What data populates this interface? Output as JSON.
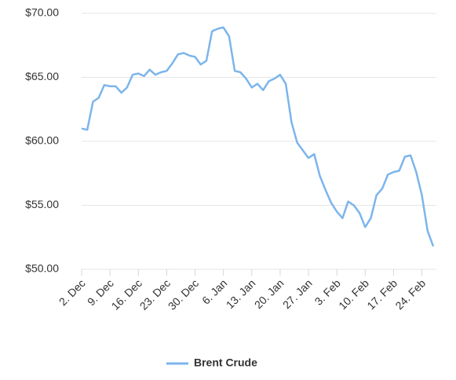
{
  "chart_data": {
    "type": "line",
    "categories": [
      "2. Dec",
      null,
      null,
      null,
      null,
      "9. Dec",
      null,
      null,
      null,
      null,
      "16. Dec",
      null,
      null,
      null,
      null,
      "23. Dec",
      null,
      null,
      null,
      null,
      "30. Dec",
      null,
      null,
      null,
      null,
      "6. Jan",
      null,
      null,
      null,
      null,
      "13. Jan",
      null,
      null,
      null,
      null,
      "20. Jan",
      null,
      null,
      null,
      null,
      "27. Jan",
      null,
      null,
      null,
      null,
      "3. Feb",
      null,
      null,
      null,
      null,
      "10. Feb",
      null,
      null,
      null,
      null,
      "17. Feb",
      null,
      null,
      null,
      null,
      "24. Feb",
      null,
      null
    ],
    "series": [
      {
        "name": "Brent Crude",
        "color": "#7cb5ec",
        "values": [
          61.0,
          60.9,
          63.1,
          63.4,
          64.4,
          64.3,
          64.3,
          63.8,
          64.2,
          65.2,
          65.3,
          65.1,
          65.6,
          65.2,
          65.4,
          65.5,
          66.1,
          66.8,
          66.9,
          66.7,
          66.6,
          66.0,
          66.3,
          68.6,
          68.8,
          68.9,
          68.2,
          65.5,
          65.4,
          64.9,
          64.2,
          64.5,
          64.0,
          64.7,
          64.9,
          65.2,
          64.5,
          61.5,
          59.9,
          59.3,
          58.7,
          59.0,
          57.3,
          56.2,
          55.2,
          54.5,
          54.0,
          55.3,
          55.0,
          54.4,
          53.3,
          54.0,
          55.8,
          56.3,
          57.4,
          57.6,
          57.7,
          58.8,
          58.9,
          57.6,
          55.8,
          53.0,
          51.8
        ]
      }
    ],
    "ylim": [
      50,
      70
    ],
    "yticks": [
      {
        "value": 50,
        "label": "$50.00"
      },
      {
        "value": 55,
        "label": "$55.00"
      },
      {
        "value": 60,
        "label": "$60.00"
      },
      {
        "value": 65,
        "label": "$65.00"
      },
      {
        "value": 70,
        "label": "$70.00"
      }
    ],
    "grid": true,
    "legend": "bottom"
  }
}
